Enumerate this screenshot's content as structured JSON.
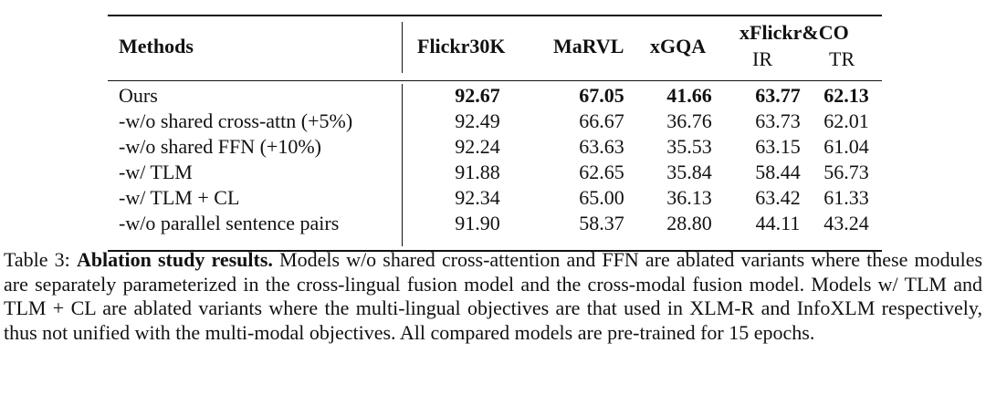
{
  "table": {
    "headers": {
      "methods": "Methods",
      "flickr30k": "Flickr30K",
      "marvl": "MaRVL",
      "xgqa": "xGQA",
      "xflickrco": "xFlickr&CO",
      "ir": "IR",
      "tr": "TR"
    },
    "rows": [
      {
        "method": "Ours",
        "flickr30k": "92.67",
        "marvl": "67.05",
        "xgqa": "41.66",
        "ir": "63.77",
        "tr": "62.13"
      },
      {
        "method": "-w/o shared cross-attn (+5%)",
        "flickr30k": "92.49",
        "marvl": "66.67",
        "xgqa": "36.76",
        "ir": "63.73",
        "tr": "62.01"
      },
      {
        "method": "-w/o shared FFN (+10%)",
        "flickr30k": "92.24",
        "marvl": "63.63",
        "xgqa": "35.53",
        "ir": "63.15",
        "tr": "61.04"
      },
      {
        "method": "-w/ TLM",
        "flickr30k": "91.88",
        "marvl": "62.65",
        "xgqa": "35.84",
        "ir": "58.44",
        "tr": "56.73"
      },
      {
        "method": "-w/ TLM + CL",
        "flickr30k": "92.34",
        "marvl": "65.00",
        "xgqa": "36.13",
        "ir": "63.42",
        "tr": "61.33"
      },
      {
        "method": "-w/o parallel sentence pairs",
        "flickr30k": "91.90",
        "marvl": "58.37",
        "xgqa": "28.80",
        "ir": "44.11",
        "tr": "43.24"
      }
    ]
  },
  "caption": {
    "label": "Table 3:",
    "bold": "Ablation study results.",
    "text": "Models w/o shared cross-attention and FFN are ablated variants where these modules are separately parameterized in the cross-lingual fusion model and the cross-modal fusion model. Models w/ TLM and TLM + CL are ablated variants where the multi-lingual objectives are that used in XLM-R and InfoXLM respectively, thus not unified with the multi-modal objectives. All compared models are pre-trained for 15 epochs."
  }
}
